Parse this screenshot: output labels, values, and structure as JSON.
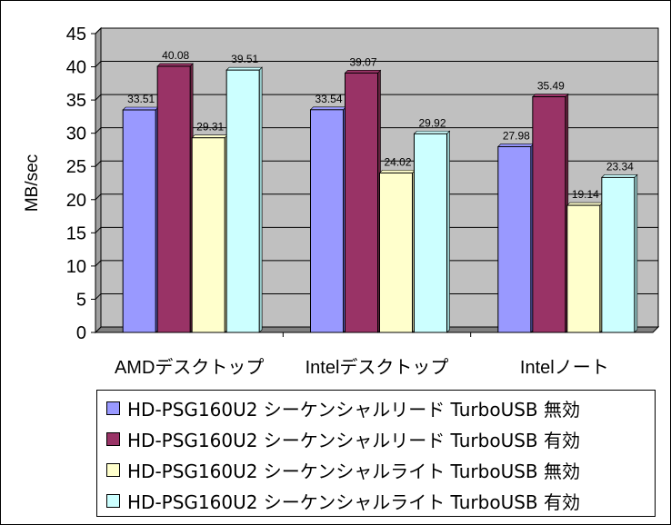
{
  "chart_data": {
    "type": "bar",
    "ylabel": "MB/sec",
    "ylim": [
      0,
      45
    ],
    "y_ticks": [
      "0",
      "5",
      "10",
      "15",
      "20",
      "25",
      "30",
      "35",
      "40",
      "45"
    ],
    "categories": [
      "AMDデスクトップ",
      "Intelデスクトップ",
      "Intelノート"
    ],
    "grid": true,
    "legend_position": "bottom",
    "series": [
      {
        "name": "HD-PSG160U2 シーケンシャルリード TurboUSB 無効",
        "color": "#9999ff",
        "values": [
          33.51,
          33.54,
          27.98
        ],
        "labels": [
          "33.51",
          "33.54",
          "27.98"
        ]
      },
      {
        "name": "HD-PSG160U2 シーケンシャルリード TurboUSB 有効",
        "color": "#993366",
        "values": [
          40.08,
          39.07,
          35.49
        ],
        "labels": [
          "40.08",
          "39.07",
          "35.49"
        ]
      },
      {
        "name": "HD-PSG160U2 シーケンシャルライト TurboUSB 無効",
        "color": "#ffffcc",
        "values": [
          29.31,
          24.02,
          19.14
        ],
        "labels": [
          "29.31",
          "24.02",
          "19.14"
        ]
      },
      {
        "name": "HD-PSG160U2 シーケンシャルライト TurboUSB 有効",
        "color": "#ccffff",
        "values": [
          39.51,
          29.92,
          23.34
        ],
        "labels": [
          "39.51",
          "29.92",
          "23.34"
        ]
      }
    ],
    "plot_background": "#c0c0c0"
  }
}
